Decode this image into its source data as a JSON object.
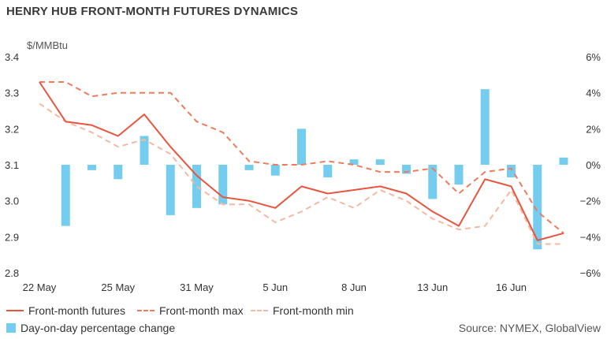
{
  "chart_data": {
    "type": "bar+line",
    "title": "HENRY HUB FRONT-MONTH FUTURES DYNAMICS",
    "ylabel_left": "$/MMBtu",
    "source": "Source: NYMEX, GlobalView",
    "left_axis": {
      "ylim": [
        2.8,
        3.4
      ],
      "ticks": [
        "3.4",
        "3.3",
        "3.2",
        "3.1",
        "3.0",
        "2.9",
        "2.8"
      ]
    },
    "right_axis": {
      "ylim": [
        -6,
        6
      ],
      "ticks": [
        "6%",
        "4%",
        "2%",
        "0%",
        "−2%",
        "−4%",
        "−6%"
      ]
    },
    "x_tick_labels": [
      "22 May",
      "25 May",
      "31 May",
      "5 Jun",
      "8 Jun",
      "13 Jun",
      "16 Jun"
    ],
    "x_tick_index": [
      0,
      3,
      6,
      9,
      12,
      15,
      18
    ],
    "series": [
      {
        "name": "Front-month futures",
        "kind": "line",
        "axis": "left",
        "values": [
          3.33,
          3.22,
          3.21,
          3.18,
          3.24,
          3.15,
          3.07,
          3.01,
          3.0,
          2.98,
          3.04,
          3.02,
          3.03,
          3.04,
          3.02,
          2.97,
          2.93,
          3.06,
          3.04,
          2.89,
          2.91
        ]
      },
      {
        "name": "Front-month max",
        "kind": "line",
        "axis": "left",
        "values": [
          3.33,
          3.33,
          3.29,
          3.3,
          3.3,
          3.3,
          3.22,
          3.19,
          3.11,
          3.1,
          3.1,
          3.11,
          3.1,
          3.08,
          3.08,
          3.09,
          3.02,
          3.08,
          3.09,
          2.97,
          2.91
        ]
      },
      {
        "name": "Front-month min",
        "kind": "line",
        "axis": "left",
        "values": [
          3.27,
          3.22,
          3.19,
          3.15,
          3.17,
          3.13,
          3.04,
          2.99,
          2.99,
          2.94,
          2.97,
          3.01,
          2.98,
          3.03,
          3.0,
          2.95,
          2.92,
          2.93,
          3.03,
          2.88,
          2.88
        ]
      },
      {
        "name": "Day-on-day percentage change",
        "kind": "bar",
        "axis": "right",
        "values": [
          null,
          -3.4,
          -0.3,
          -0.8,
          1.6,
          -2.8,
          -2.4,
          -2.2,
          -0.3,
          -0.6,
          2.0,
          -0.7,
          0.3,
          0.3,
          -0.5,
          -1.9,
          -1.1,
          4.2,
          -0.7,
          -4.7,
          0.4
        ]
      }
    ],
    "colors": {
      "futures": "#e8553e",
      "max": "#ee7b59",
      "min": "#f4b9a3",
      "bar": "#74cdee"
    },
    "legend_position": "bottom"
  }
}
